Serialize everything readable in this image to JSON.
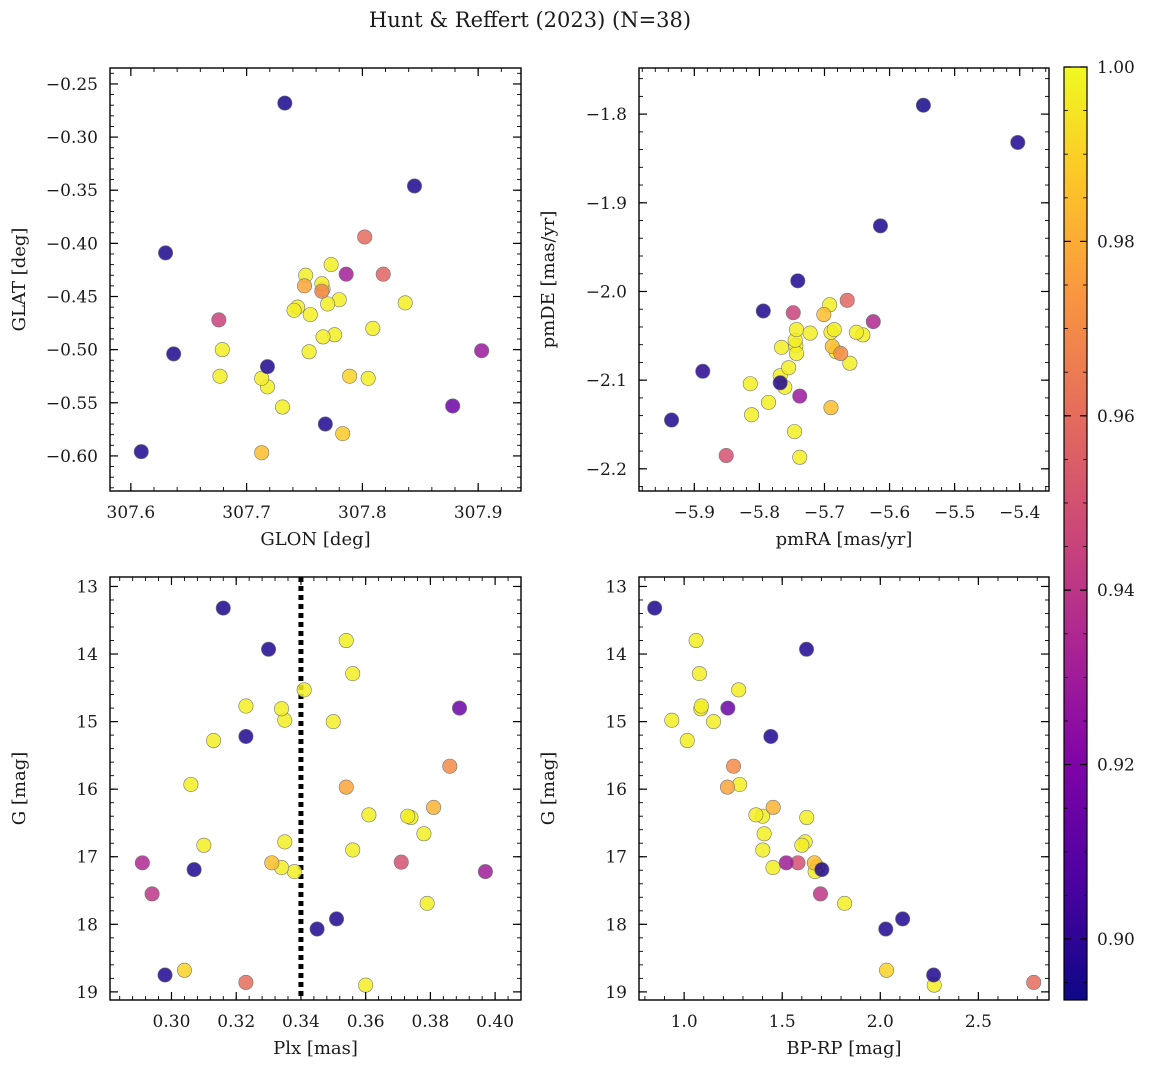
{
  "figure": {
    "suptitle": "Hunt & Reffert (2023) (N=38)"
  },
  "colorbar": {
    "min": 0.893,
    "max": 1.0,
    "ticks": [
      0.9,
      0.92,
      0.94,
      0.96,
      0.98,
      1.0
    ],
    "tick_labels": [
      "0.90",
      "0.92",
      "0.94",
      "0.96",
      "0.98",
      "1.00"
    ],
    "colormap": "plasma"
  },
  "chart_data": [
    {
      "id": "radec",
      "type": "scatter",
      "xlabel": "GLON [deg]",
      "ylabel": "GLAT [deg]",
      "xlim": [
        307.582,
        307.937
      ],
      "ylim": [
        -0.633,
        -0.235
      ],
      "xticks": [
        307.6,
        307.7,
        307.8,
        307.9
      ],
      "xtick_labels": [
        "307.6",
        "307.7",
        "307.8",
        "307.9"
      ],
      "yticks": [
        -0.25,
        -0.3,
        -0.35,
        -0.4,
        -0.45,
        -0.5,
        -0.55,
        -0.6
      ],
      "ytick_labels": [
        "−0.25",
        "−0.30",
        "−0.35",
        "−0.40",
        "−0.45",
        "−0.50",
        "−0.55",
        "−0.60"
      ],
      "points": [
        [
          307.733,
          -0.268,
          0.895
        ],
        [
          307.845,
          -0.346,
          0.897
        ],
        [
          307.63,
          -0.409,
          0.896
        ],
        [
          307.637,
          -0.504,
          0.897
        ],
        [
          307.609,
          -0.596,
          0.897
        ],
        [
          307.718,
          -0.516,
          0.897
        ],
        [
          307.768,
          -0.57,
          0.897
        ],
        [
          307.878,
          -0.553,
          0.915
        ],
        [
          307.903,
          -0.501,
          0.928
        ],
        [
          307.676,
          -0.472,
          0.945
        ],
        [
          307.786,
          -0.429,
          0.931
        ],
        [
          307.802,
          -0.394,
          0.96
        ],
        [
          307.818,
          -0.429,
          0.957
        ],
        [
          307.75,
          -0.44,
          0.978
        ],
        [
          307.765,
          -0.445,
          0.968
        ],
        [
          307.713,
          -0.597,
          0.985
        ],
        [
          307.783,
          -0.579,
          0.988
        ],
        [
          307.789,
          -0.525,
          0.99
        ],
        [
          307.677,
          -0.525,
          0.997
        ],
        [
          307.679,
          -0.5,
          0.997
        ],
        [
          307.713,
          -0.527,
          0.997
        ],
        [
          307.718,
          -0.535,
          0.997
        ],
        [
          307.731,
          -0.554,
          0.997
        ],
        [
          307.741,
          -0.463,
          0.997
        ],
        [
          307.744,
          -0.46,
          0.997
        ],
        [
          307.751,
          -0.43,
          0.997
        ],
        [
          307.755,
          -0.467,
          0.997
        ],
        [
          307.754,
          -0.502,
          0.997
        ],
        [
          307.765,
          -0.438,
          0.997
        ],
        [
          307.766,
          -0.488,
          0.997
        ],
        [
          307.77,
          -0.457,
          0.997
        ],
        [
          307.773,
          -0.42,
          0.997
        ],
        [
          307.776,
          -0.486,
          0.997
        ],
        [
          307.78,
          -0.453,
          0.997
        ],
        [
          307.805,
          -0.527,
          0.997
        ],
        [
          307.809,
          -0.48,
          0.997
        ],
        [
          307.837,
          -0.456,
          0.997
        ],
        [
          307.766,
          -0.443,
          0.997
        ]
      ]
    },
    {
      "id": "pm",
      "type": "scatter",
      "xlabel": "pmRA [mas/yr]",
      "ylabel": "pmDE [mas/yr]",
      "xlim": [
        -5.985,
        -5.355
      ],
      "ylim": [
        -2.225,
        -1.748
      ],
      "xticks": [
        -5.9,
        -5.8,
        -5.7,
        -5.6,
        -5.5,
        -5.4
      ],
      "xtick_labels": [
        "−5.9",
        "−5.8",
        "−5.7",
        "−5.6",
        "−5.5",
        "−5.4"
      ],
      "yticks": [
        -1.8,
        -1.9,
        -2.0,
        -2.1,
        -2.2
      ],
      "ytick_labels": [
        "−1.8",
        "−1.9",
        "−2.0",
        "−2.1",
        "−2.2"
      ],
      "points": [
        [
          -5.548,
          -1.79,
          0.895
        ],
        [
          -5.403,
          -1.832,
          0.897
        ],
        [
          -5.614,
          -1.926,
          0.897
        ],
        [
          -5.741,
          -1.988,
          0.897
        ],
        [
          -5.794,
          -2.022,
          0.897
        ],
        [
          -5.935,
          -2.145,
          0.897
        ],
        [
          -5.887,
          -2.09,
          0.899
        ],
        [
          -5.768,
          -2.103,
          0.897
        ],
        [
          -5.738,
          -2.118,
          0.928
        ],
        [
          -5.625,
          -2.034,
          0.935
        ],
        [
          -5.851,
          -2.185,
          0.95
        ],
        [
          -5.748,
          -2.024,
          0.945
        ],
        [
          -5.665,
          -2.01,
          0.958
        ],
        [
          -5.675,
          -2.07,
          0.97
        ],
        [
          -5.69,
          -2.131,
          0.985
        ],
        [
          -5.701,
          -2.026,
          0.985
        ],
        [
          -5.688,
          -2.062,
          0.985
        ],
        [
          -5.692,
          -2.015,
          0.997
        ],
        [
          -5.651,
          -2.046,
          0.997
        ],
        [
          -5.641,
          -2.049,
          0.997
        ],
        [
          -5.661,
          -2.081,
          0.997
        ],
        [
          -5.685,
          -2.043,
          0.997
        ],
        [
          -5.69,
          -2.046,
          0.997
        ],
        [
          -5.722,
          -2.047,
          0.997
        ],
        [
          -5.743,
          -2.043,
          0.997
        ],
        [
          -5.745,
          -2.055,
          0.997
        ],
        [
          -5.743,
          -2.07,
          0.997
        ],
        [
          -5.744,
          -2.061,
          0.997
        ],
        [
          -5.755,
          -2.086,
          0.997
        ],
        [
          -5.766,
          -2.063,
          0.997
        ],
        [
          -5.768,
          -2.095,
          0.997
        ],
        [
          -5.761,
          -2.108,
          0.997
        ],
        [
          -5.786,
          -2.125,
          0.997
        ],
        [
          -5.814,
          -2.104,
          0.997
        ],
        [
          -5.812,
          -2.139,
          0.997
        ],
        [
          -5.746,
          -2.158,
          0.997
        ],
        [
          -5.738,
          -2.187,
          0.997
        ],
        [
          -5.682,
          -2.068,
          0.997
        ]
      ]
    },
    {
      "id": "plx",
      "type": "scatter",
      "xlabel": "Plx [mas]",
      "ylabel": "G [mag]",
      "xlim": [
        0.281,
        0.408
      ],
      "ylim": [
        19.12,
        12.86
      ],
      "xticks": [
        0.3,
        0.32,
        0.34,
        0.36,
        0.38,
        0.4
      ],
      "xtick_labels": [
        "0.30",
        "0.32",
        "0.34",
        "0.36",
        "0.38",
        "0.40"
      ],
      "yticks": [
        13,
        14,
        15,
        16,
        17,
        18,
        19
      ],
      "ytick_labels": [
        "13",
        "14",
        "15",
        "16",
        "17",
        "18",
        "19"
      ],
      "vline": 0.34,
      "points": [
        [
          0.316,
          13.32,
          0.896
        ],
        [
          0.33,
          13.93,
          0.897
        ],
        [
          0.323,
          15.22,
          0.897
        ],
        [
          0.307,
          17.19,
          0.897
        ],
        [
          0.298,
          18.75,
          0.897
        ],
        [
          0.345,
          18.07,
          0.897
        ],
        [
          0.351,
          17.92,
          0.897
        ],
        [
          0.389,
          14.8,
          0.915
        ],
        [
          0.397,
          17.22,
          0.93
        ],
        [
          0.291,
          17.09,
          0.935
        ],
        [
          0.294,
          17.55,
          0.94
        ],
        [
          0.371,
          17.08,
          0.95
        ],
        [
          0.323,
          18.86,
          0.96
        ],
        [
          0.386,
          15.66,
          0.97
        ],
        [
          0.354,
          15.97,
          0.978
        ],
        [
          0.381,
          16.27,
          0.982
        ],
        [
          0.331,
          17.09,
          0.985
        ],
        [
          0.304,
          18.68,
          0.99
        ],
        [
          0.354,
          13.8,
          0.997
        ],
        [
          0.356,
          14.29,
          0.997
        ],
        [
          0.341,
          14.53,
          0.997
        ],
        [
          0.323,
          14.77,
          0.997
        ],
        [
          0.334,
          14.81,
          0.997
        ],
        [
          0.335,
          14.98,
          0.997
        ],
        [
          0.35,
          15.0,
          0.997
        ],
        [
          0.313,
          15.28,
          0.997
        ],
        [
          0.306,
          15.93,
          0.997
        ],
        [
          0.31,
          16.83,
          0.997
        ],
        [
          0.335,
          16.78,
          0.997
        ],
        [
          0.334,
          17.16,
          0.997
        ],
        [
          0.338,
          17.22,
          0.997
        ],
        [
          0.356,
          16.9,
          0.997
        ],
        [
          0.361,
          16.38,
          0.997
        ],
        [
          0.373,
          16.4,
          0.997
        ],
        [
          0.374,
          16.42,
          0.997
        ],
        [
          0.378,
          16.66,
          0.997
        ],
        [
          0.379,
          17.69,
          0.997
        ],
        [
          0.36,
          18.9,
          0.997
        ]
      ]
    },
    {
      "id": "cmd",
      "type": "scatter",
      "xlabel": "BP-RP [mag]",
      "ylabel": "G [mag]",
      "xlim": [
        0.77,
        2.86
      ],
      "ylim": [
        19.12,
        12.86
      ],
      "xticks": [
        1.0,
        1.5,
        2.0,
        2.5
      ],
      "xtick_labels": [
        "1.0",
        "1.5",
        "2.0",
        "2.5"
      ],
      "yticks": [
        13,
        14,
        15,
        16,
        17,
        18,
        19
      ],
      "ytick_labels": [
        "13",
        "14",
        "15",
        "16",
        "17",
        "18",
        "19"
      ],
      "points": [
        [
          0.85,
          13.32,
          0.896
        ],
        [
          1.624,
          13.93,
          0.897
        ],
        [
          1.442,
          15.22,
          0.897
        ],
        [
          1.702,
          17.19,
          0.897
        ],
        [
          2.272,
          18.75,
          0.897
        ],
        [
          2.028,
          18.07,
          0.897
        ],
        [
          2.114,
          17.92,
          0.897
        ],
        [
          1.223,
          14.8,
          0.915
        ],
        [
          1.521,
          17.09,
          0.93
        ],
        [
          1.695,
          17.55,
          0.94
        ],
        [
          1.58,
          17.09,
          0.95
        ],
        [
          2.782,
          18.86,
          0.96
        ],
        [
          1.252,
          15.66,
          0.97
        ],
        [
          1.221,
          15.97,
          0.978
        ],
        [
          1.454,
          16.27,
          0.982
        ],
        [
          1.664,
          17.09,
          0.985
        ],
        [
          2.032,
          18.68,
          0.99
        ],
        [
          1.061,
          13.8,
          0.997
        ],
        [
          1.078,
          14.29,
          0.997
        ],
        [
          1.278,
          14.53,
          0.997
        ],
        [
          1.088,
          14.77,
          0.997
        ],
        [
          1.085,
          14.81,
          0.997
        ],
        [
          0.937,
          14.98,
          0.997
        ],
        [
          1.15,
          15.0,
          0.997
        ],
        [
          1.016,
          15.28,
          0.997
        ],
        [
          1.283,
          15.93,
          0.997
        ],
        [
          1.6,
          16.83,
          0.997
        ],
        [
          1.617,
          16.78,
          0.997
        ],
        [
          1.453,
          17.16,
          0.997
        ],
        [
          1.668,
          17.22,
          0.997
        ],
        [
          1.401,
          16.9,
          0.997
        ],
        [
          1.366,
          16.38,
          0.997
        ],
        [
          1.4,
          16.4,
          0.997
        ],
        [
          1.625,
          16.42,
          0.997
        ],
        [
          1.408,
          16.66,
          0.997
        ],
        [
          1.818,
          17.69,
          0.997
        ],
        [
          2.275,
          18.9,
          0.997
        ],
        [
          1.68,
          17.15,
          0.997
        ]
      ]
    }
  ]
}
